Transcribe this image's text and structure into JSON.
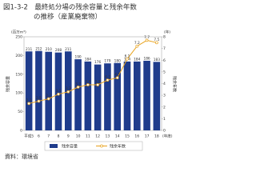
{
  "chart_data": {
    "type": "bar_line",
    "title_lines": [
      "図1-3-2　最終処分場の残余容量と残余年数",
      "の推移（産業廃棄物）"
    ],
    "y_unit": "(百万m³)",
    "y_label": "残余容量",
    "y2_unit": "(年)",
    "y2_label": "残余年数",
    "x_unit": "(年度)",
    "categories": [
      "平成5",
      "6",
      "7",
      "8",
      "9",
      "10",
      "11",
      "12",
      "13",
      "14",
      "15",
      "16",
      "17",
      "18"
    ],
    "series": [
      {
        "name": "残余容量",
        "color": "#1f3c8c",
        "kind": "bar",
        "values": [
          211,
          212,
          210,
          208,
          211,
          190,
          184,
          176,
          179,
          180,
          184,
          184,
          186,
          183
        ]
      },
      {
        "name": "残余年数",
        "color": "#e8a21c",
        "kind": "line",
        "axis": "y2",
        "values": [
          2.3,
          2.5,
          2.7,
          3.1,
          3.3,
          3.7,
          3.9,
          3.9,
          4.3,
          4.5,
          6.1,
          7.2,
          7.7,
          7.5
        ]
      }
    ],
    "ylim": [
      0,
      250
    ],
    "yticks": [
      0,
      50,
      100,
      150,
      200,
      250
    ],
    "y2lim": [
      0,
      8
    ],
    "y2ticks": [
      0,
      1,
      2,
      3,
      4,
      5,
      6,
      7,
      8
    ],
    "source": "資料：環境省"
  }
}
